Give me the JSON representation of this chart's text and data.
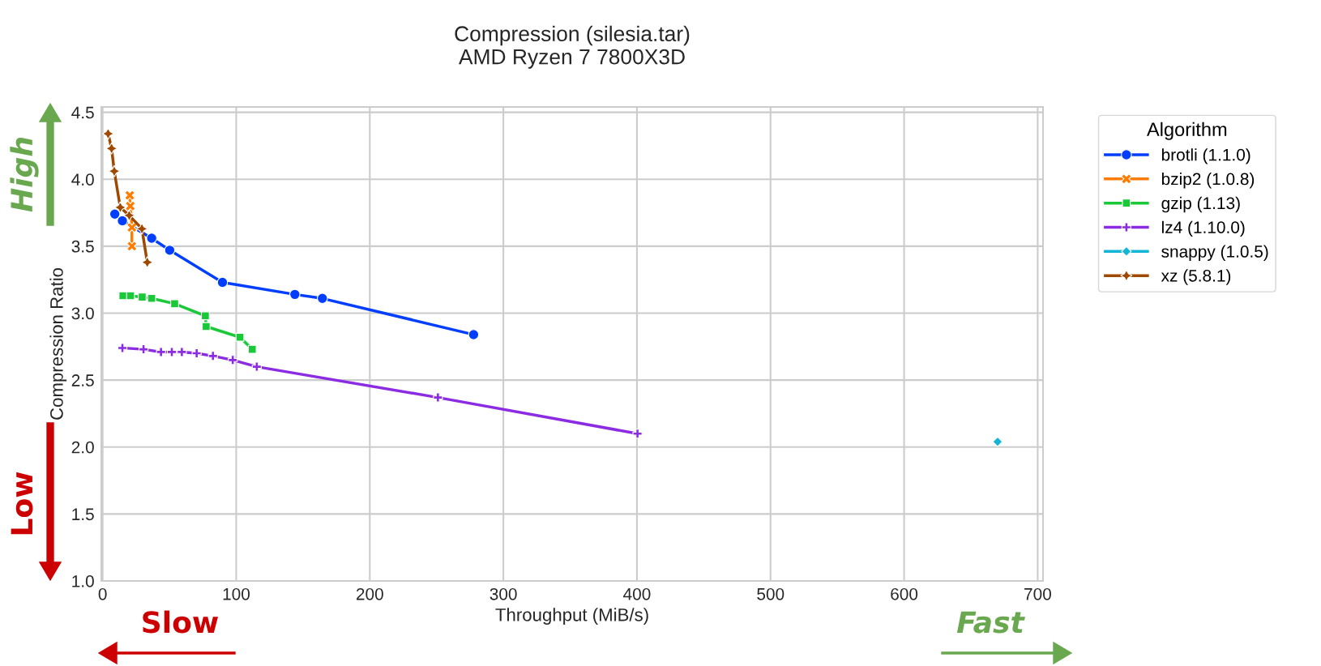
{
  "chart_data": {
    "type": "line",
    "title": "Compression (silesia.tar)\nAMD Ryzen 7 7800X3D",
    "xlabel": "Throughput (MiB/s)",
    "ylabel": "Compression Ratio",
    "legend_title": "Algorithm",
    "legend": "right",
    "grid": true,
    "xlim": [
      -1,
      704
    ],
    "xticks": [
      0,
      100,
      200,
      300,
      400,
      500,
      600,
      700
    ],
    "ylim": [
      1.0,
      4.54
    ],
    "yticks": [
      {
        "value": 1.0,
        "label": "1.0"
      },
      {
        "value": 1.5,
        "label": "1.5"
      },
      {
        "value": 2.0,
        "label": "2.0"
      },
      {
        "value": 2.5,
        "label": "2.5"
      },
      {
        "value": 3.0,
        "label": "3.0"
      },
      {
        "value": 3.5,
        "label": "3.5"
      },
      {
        "value": 4.0,
        "label": "4.0"
      },
      {
        "value": 4.5,
        "label": "4.5"
      }
    ],
    "series": [
      {
        "name": "brotli (1.1.0)",
        "color": "#023eff",
        "marker": "circle",
        "x": [
          9.1,
          14.8,
          36.7,
          50.2,
          89.7,
          143.9,
          164.5,
          277.7
        ],
        "values": [
          3.74,
          3.69,
          3.56,
          3.47,
          3.23,
          3.14,
          3.11,
          2.84
        ]
      },
      {
        "name": "bzip2 (1.0.8)",
        "color": "#ff7c00",
        "marker": "cross",
        "x": [
          20.3,
          20.7,
          21.9,
          21.9
        ],
        "values": [
          3.88,
          3.8,
          3.64,
          3.5
        ]
      },
      {
        "name": "gzip (1.13)",
        "color": "#1ac938",
        "marker": "square",
        "x": [
          15.2,
          20.9,
          29.6,
          36.7,
          53.9,
          76.9,
          77.5,
          102.8,
          112.0
        ],
        "values": [
          3.13,
          3.13,
          3.12,
          3.11,
          3.07,
          2.98,
          2.9,
          2.82,
          2.73
        ]
      },
      {
        "name": "lz4 (1.10.0)",
        "color": "#8b2be2",
        "marker": "plus",
        "x": [
          14.8,
          30.6,
          43.7,
          51.8,
          59.3,
          70.4,
          82.6,
          97.4,
          115.4,
          251.0,
          400.4
        ],
        "values": [
          2.74,
          2.73,
          2.71,
          2.71,
          2.71,
          2.7,
          2.68,
          2.65,
          2.6,
          2.37,
          2.1
        ]
      },
      {
        "name": "snappy (1.0.5)",
        "color": "#12b5d6",
        "marker": "diamond",
        "x": [
          670.0
        ],
        "values": [
          2.04
        ]
      },
      {
        "name": "xz (5.8.1)",
        "color": "#9f4800",
        "marker": "star",
        "x": [
          4.1,
          6.7,
          8.7,
          13.2,
          19.9,
          29.4,
          33.4
        ],
        "values": [
          4.34,
          4.23,
          4.06,
          3.79,
          3.73,
          3.63,
          3.38
        ]
      }
    ],
    "annotations": [
      "High",
      "Low",
      "Slow",
      "Fast"
    ]
  }
}
